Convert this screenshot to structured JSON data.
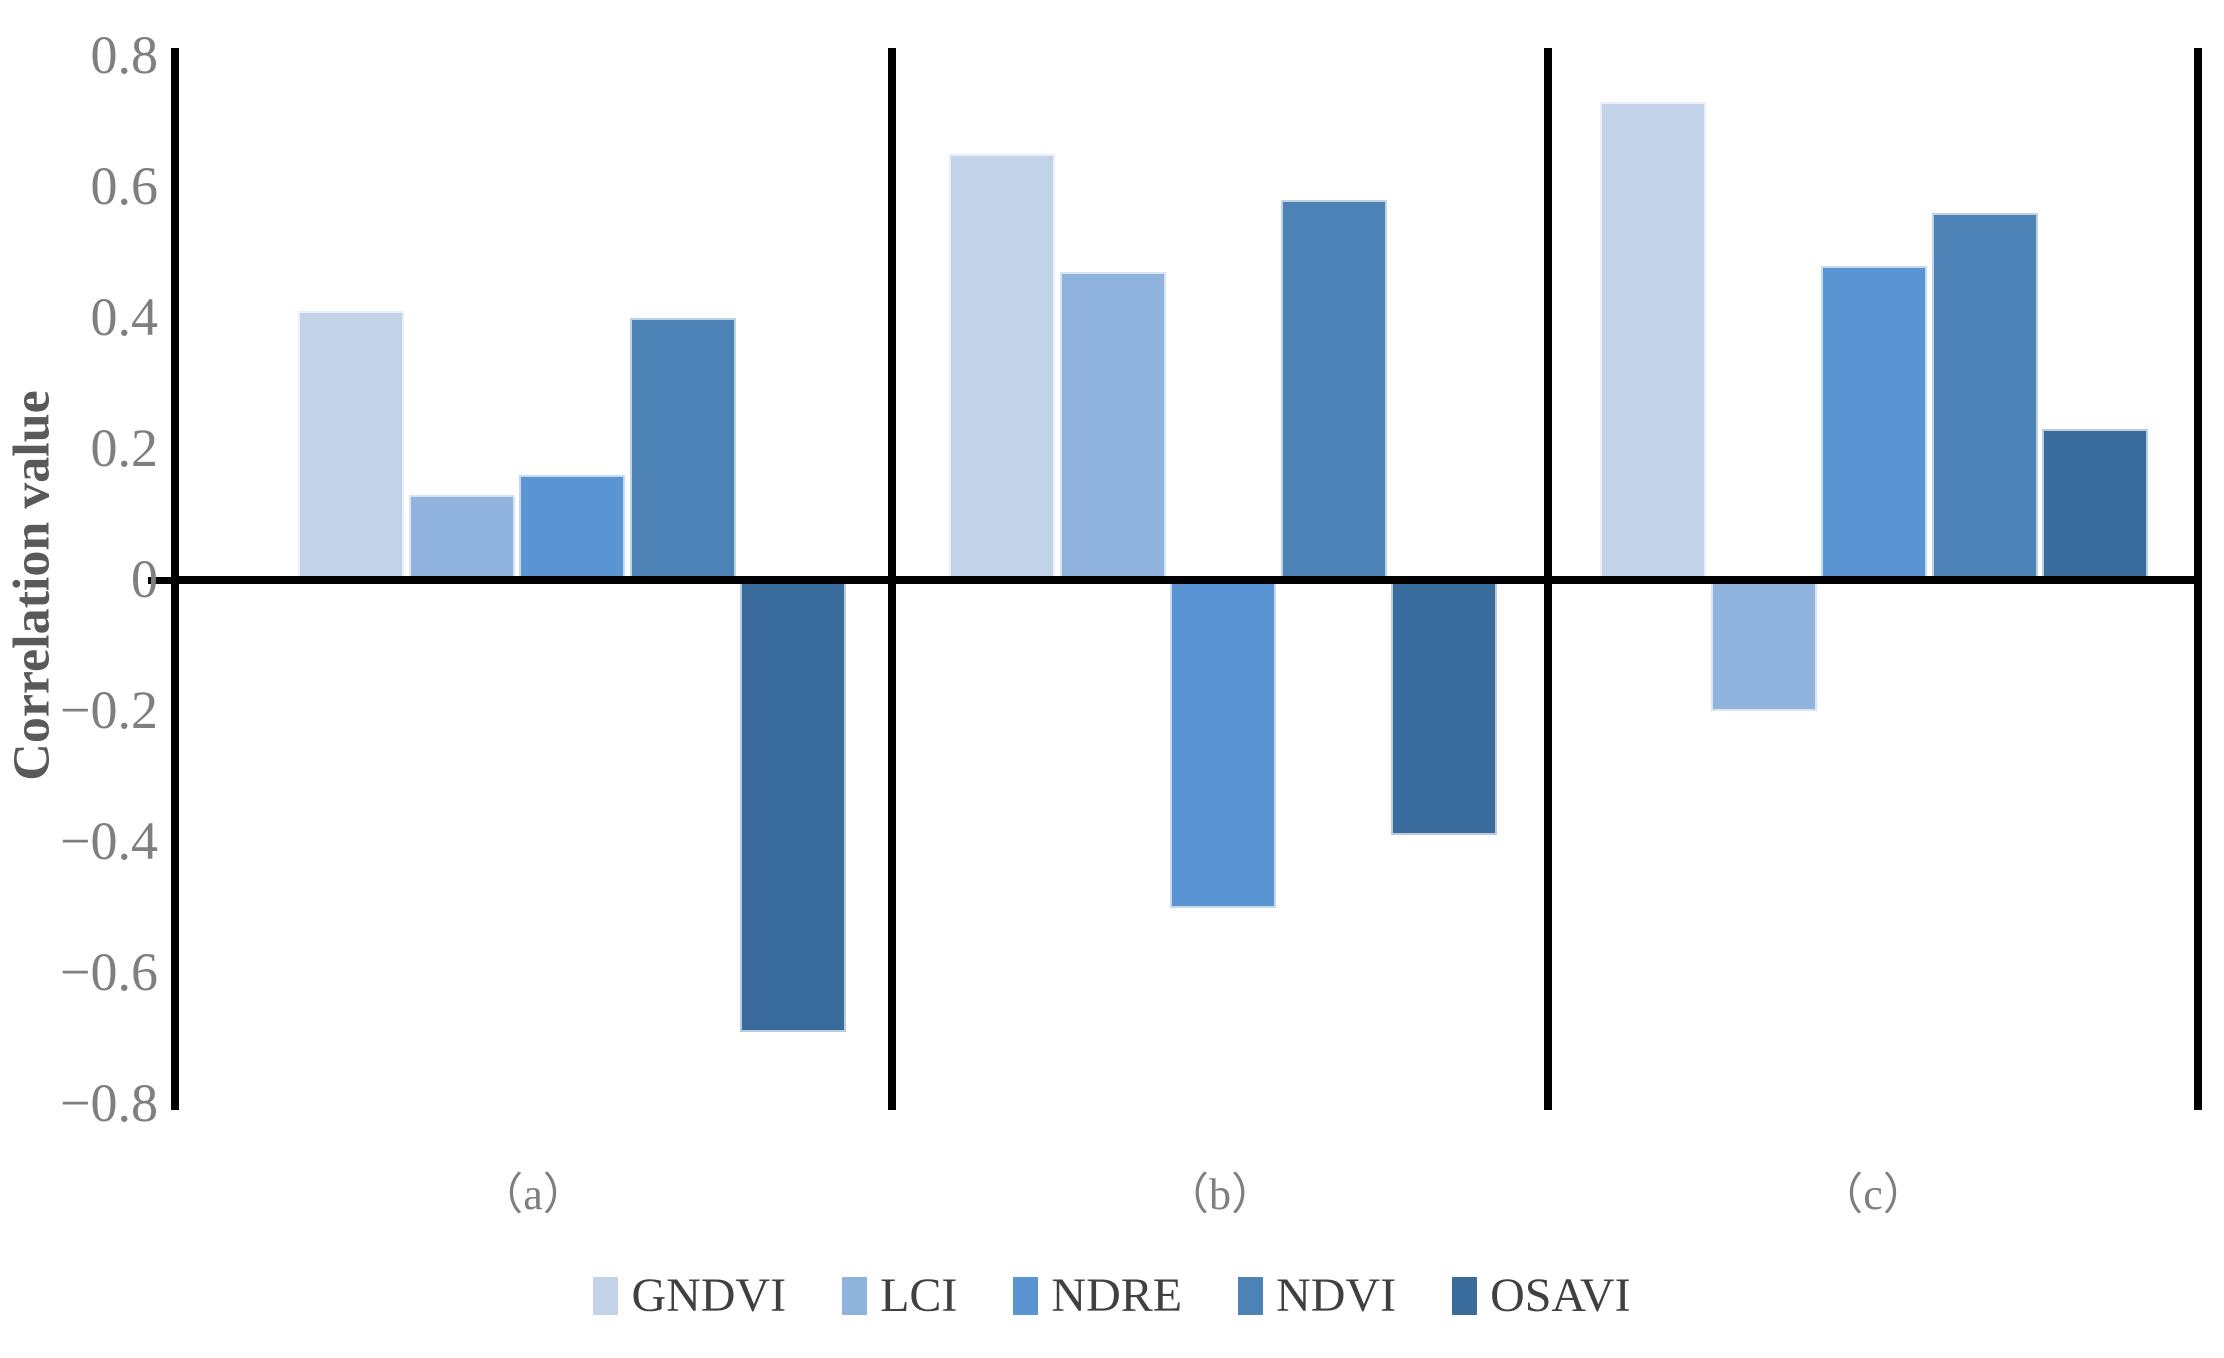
{
  "chart_data": {
    "type": "bar",
    "title": "",
    "ylabel": "Correlation value",
    "xlabel": "",
    "ylim": [
      -0.8,
      0.8
    ],
    "ytick_step": 0.2,
    "yticks": [
      {
        "value": 0.8,
        "label": "0.8"
      },
      {
        "value": 0.6,
        "label": "0.6"
      },
      {
        "value": 0.4,
        "label": "0.4"
      },
      {
        "value": 0.2,
        "label": "0.2"
      },
      {
        "value": 0.0,
        "label": "0"
      },
      {
        "value": -0.2,
        "label": "−0.2"
      },
      {
        "value": -0.4,
        "label": "−0.4"
      },
      {
        "value": -0.6,
        "label": "−0.6"
      },
      {
        "value": -0.8,
        "label": "−0.8"
      }
    ],
    "grid": false,
    "legend_position": "bottom",
    "series": [
      {
        "name": "GNDVI",
        "color": "#C2D2E8",
        "values": [
          0.41,
          0.65,
          0.73
        ]
      },
      {
        "name": "LCI",
        "color": "#8FB3DC",
        "values": [
          0.13,
          0.47,
          -0.2
        ]
      },
      {
        "name": "NDRE",
        "color": "#5B94D2",
        "values": [
          0.16,
          -0.5,
          0.48
        ]
      },
      {
        "name": "NDVI",
        "color": "#4C82B6",
        "values": [
          0.4,
          0.58,
          0.56
        ]
      },
      {
        "name": "OSAVI",
        "color": "#3A6B9D",
        "values": [
          -0.69,
          -0.39,
          0.23
        ]
      }
    ],
    "panels": [
      {
        "key": "a",
        "label": "（a）"
      },
      {
        "key": "b",
        "label": "（b）"
      },
      {
        "key": "c",
        "label": "（c）"
      }
    ]
  },
  "legend": {
    "items": [
      {
        "label": "GNDVI",
        "color": "#C2D2E8"
      },
      {
        "label": "LCI",
        "color": "#8FB3DC"
      },
      {
        "label": "NDRE",
        "color": "#5B94D2"
      },
      {
        "label": "NDVI",
        "color": "#4C82B6"
      },
      {
        "label": "OSAVI",
        "color": "#3A6B9D"
      }
    ]
  }
}
